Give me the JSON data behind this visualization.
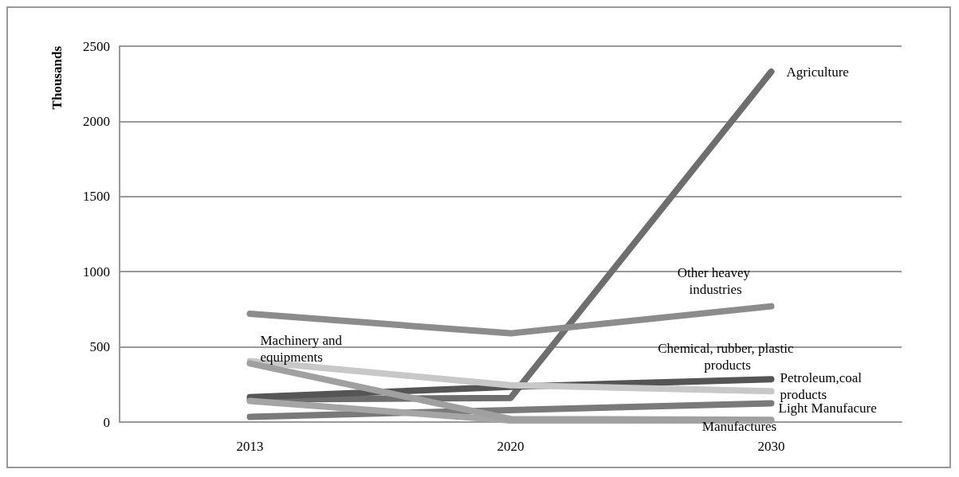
{
  "chart_data": {
    "type": "line",
    "ylabel": "Thousands",
    "categories": [
      "2013",
      "2020",
      "2030"
    ],
    "series": [
      {
        "name": "Agriculture",
        "color": "#6e6e6e",
        "values": [
          150,
          160,
          2330
        ]
      },
      {
        "name": "Other heavey industries",
        "color": "#8c8c8c",
        "values": [
          720,
          590,
          770
        ]
      },
      {
        "name": "Chemical, rubber, plastic products",
        "color": "#555555",
        "values": [
          165,
          235,
          285
        ]
      },
      {
        "name": "Petroleum,coal products",
        "color": "#c8c8c8",
        "values": [
          405,
          245,
          205
        ]
      },
      {
        "name": "Light Manufacure",
        "color": "#7a7a7a",
        "values": [
          35,
          80,
          125
        ]
      },
      {
        "name": "Manufactures",
        "color": "#a5a5a5",
        "values": [
          140,
          10,
          10
        ]
      },
      {
        "name": "Machinery and equipments",
        "color": "#a0a0a0",
        "values": [
          390,
          20,
          15
        ]
      }
    ],
    "ylim": [
      0,
      2500
    ],
    "yticks": [
      0,
      500,
      1000,
      1500,
      2000,
      2500
    ],
    "grid": "y",
    "legend": false,
    "marker": "none",
    "line_style": "solid"
  }
}
